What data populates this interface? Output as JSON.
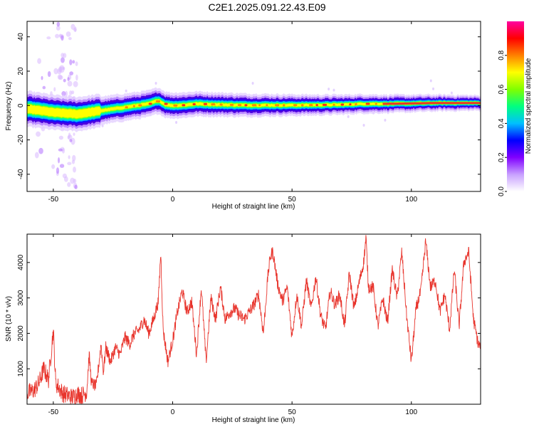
{
  "title": "C2E1.2025.091.22.43.E09",
  "colors": {
    "series": "#e8342c",
    "frame": "#000000",
    "center": "#e8352a"
  },
  "chart_data": [
    {
      "type": "heatmap",
      "xlabel": "Height of straight line (km)",
      "ylabel": "Frequency (Hz)",
      "xlim": [
        -61,
        129
      ],
      "ylim": [
        -50,
        49
      ],
      "x_ticks": [
        -50,
        0,
        50,
        100
      ],
      "x_tick_labels": [
        "-50",
        "0",
        "50",
        "100"
      ],
      "y_ticks": [
        -40,
        -20,
        0,
        20,
        40
      ],
      "y_tick_labels": [
        "-40",
        "-20",
        "0",
        "20",
        "40"
      ],
      "colorbar": {
        "label": "Normalized spectral amplitude",
        "range": [
          0,
          1
        ],
        "ticks": [
          0.0,
          0.2,
          0.4,
          0.6,
          0.8
        ],
        "tick_labels": [
          "0.0",
          "0.2",
          "0.4",
          "0.6",
          "0.8"
        ],
        "colormap": [
          "#ffffff",
          "#c8a0ff",
          "#8000ff",
          "#0000ff",
          "#00c0ff",
          "#00ff80",
          "#80ff00",
          "#ffff00",
          "#ff8000",
          "#ff0000",
          "#ff00a0"
        ]
      },
      "ridge_frequency": {
        "x": [
          -61,
          -55,
          -50,
          -45,
          -40,
          -35,
          -30,
          -25,
          -20,
          -15,
          -10,
          -6,
          -3,
          0,
          5,
          10,
          20,
          30,
          40,
          50,
          60,
          70,
          80,
          90,
          100,
          110,
          120,
          129
        ],
        "y": [
          -2,
          -3,
          -4,
          -4.5,
          -5,
          -4,
          -3,
          -2,
          -1,
          0,
          1,
          3,
          0.5,
          0,
          0.3,
          1,
          0.5,
          0.2,
          0.2,
          0.2,
          0.3,
          0.5,
          1,
          1,
          1.2,
          1.5,
          1.5,
          1.5
        ]
      }
    },
    {
      "type": "line",
      "xlabel": "Height of straight line (km)",
      "ylabel": "SNR (10 * v/v)",
      "xlim": [
        -61,
        129
      ],
      "ylim": [
        0,
        4800
      ],
      "x_ticks": [
        -50,
        0,
        50,
        100
      ],
      "x_tick_labels": [
        "-50",
        "0",
        "50",
        "100"
      ],
      "y_ticks": [
        1000,
        2000,
        3000,
        4000
      ],
      "y_tick_labels": [
        "1000",
        "2000",
        "3000",
        "4000"
      ],
      "x": [
        -61,
        -58,
        -56,
        -54,
        -52,
        -50,
        -49,
        -48,
        -46,
        -44,
        -42,
        -40,
        -38,
        -36,
        -35,
        -34,
        -32,
        -30,
        -29,
        -28,
        -26,
        -24,
        -22,
        -20,
        -18,
        -16,
        -14,
        -12,
        -10,
        -8,
        -6,
        -5,
        -4,
        -2,
        0,
        2,
        4,
        6,
        8,
        10,
        12,
        14,
        16,
        18,
        20,
        22,
        24,
        26,
        28,
        30,
        32,
        34,
        36,
        38,
        40,
        41,
        42,
        44,
        46,
        48,
        50,
        52,
        54,
        56,
        58,
        60,
        62,
        64,
        66,
        68,
        70,
        72,
        74,
        76,
        78,
        80,
        81,
        82,
        84,
        86,
        88,
        90,
        92,
        94,
        96,
        98,
        100,
        102,
        104,
        106,
        108,
        110,
        112,
        114,
        116,
        118,
        120,
        122,
        124,
        126,
        128,
        129
      ],
      "y": [
        300,
        400,
        600,
        1000,
        700,
        2100,
        600,
        500,
        300,
        250,
        200,
        300,
        250,
        350,
        1400,
        600,
        500,
        1700,
        900,
        1600,
        1200,
        1600,
        1400,
        1900,
        1700,
        2000,
        2100,
        2400,
        2000,
        2400,
        2900,
        4300,
        2100,
        1200,
        1800,
        2600,
        3200,
        2600,
        2900,
        1400,
        3300,
        1200,
        3000,
        2400,
        3300,
        2400,
        2600,
        2700,
        2500,
        2400,
        2600,
        2800,
        3100,
        2000,
        3700,
        4200,
        4300,
        3400,
        2900,
        3300,
        1900,
        3100,
        2200,
        3500,
        2700,
        3600,
        2500,
        2100,
        3200,
        2800,
        3100,
        2200,
        3700,
        2700,
        3400,
        4000,
        4700,
        3300,
        3300,
        2200,
        3000,
        2300,
        3800,
        3000,
        4300,
        2500,
        1200,
        2700,
        3200,
        4600,
        3300,
        3500,
        2600,
        3100,
        2100,
        3800,
        2200,
        4000,
        4300,
        2400,
        1700,
        1600
      ]
    }
  ]
}
